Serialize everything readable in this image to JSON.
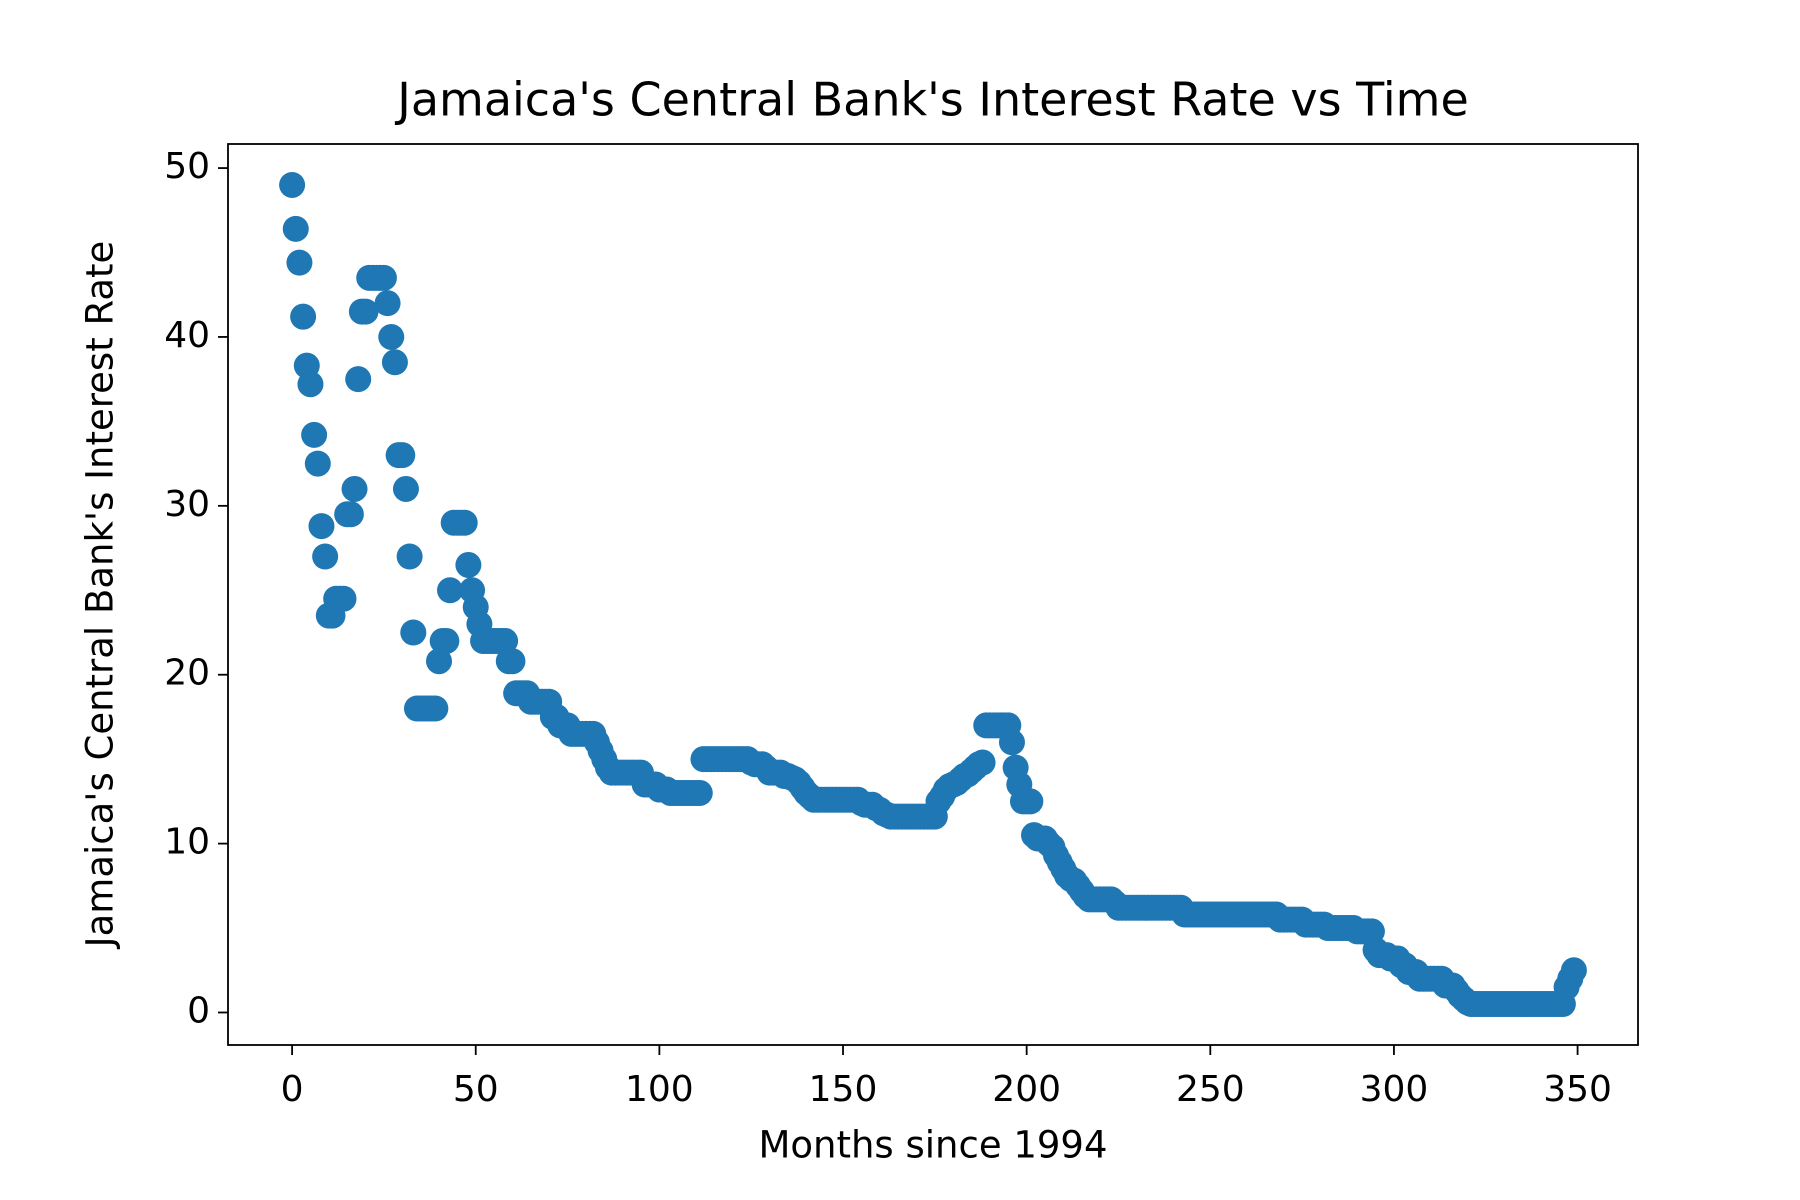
{
  "chart_data": {
    "type": "scatter",
    "title": "Jamaica's Central Bank's Interest Rate vs Time",
    "x_label": "Months since 1994",
    "y_label": "Jamaica's Central Bank's Interest Rate",
    "color": "#1f77b4",
    "xlim": [
      -17.45,
      366.45
    ],
    "ylim": [
      -1.925,
      51.425
    ],
    "xticks": [
      0,
      50,
      100,
      150,
      200,
      250,
      300,
      350
    ],
    "yticks": [
      0,
      10,
      20,
      30,
      40,
      50
    ],
    "x": [
      0,
      1,
      2,
      3,
      4,
      5,
      6,
      7,
      8,
      9,
      10,
      11,
      12,
      13,
      14,
      15,
      16,
      17,
      18,
      19,
      20,
      21,
      22,
      23,
      24,
      25,
      26,
      27,
      28,
      29,
      30,
      31,
      32,
      33,
      34,
      35,
      36,
      37,
      38,
      39,
      40,
      41,
      42,
      43,
      44,
      45,
      46,
      47,
      48,
      49,
      50,
      51,
      52,
      53,
      54,
      55,
      56,
      57,
      58,
      59,
      60,
      61,
      62,
      63,
      64,
      65,
      66,
      67,
      68,
      69,
      70,
      71,
      72,
      73,
      74,
      75,
      76,
      77,
      78,
      79,
      80,
      81,
      82,
      83,
      84,
      85,
      86,
      87,
      88,
      89,
      90,
      91,
      92,
      93,
      94,
      95,
      96,
      97,
      98,
      99,
      100,
      101,
      102,
      103,
      104,
      105,
      106,
      107,
      108,
      109,
      110,
      111,
      112,
      113,
      114,
      115,
      116,
      117,
      118,
      119,
      120,
      121,
      122,
      123,
      124,
      125,
      126,
      127,
      128,
      129,
      130,
      131,
      132,
      133,
      134,
      135,
      136,
      137,
      138,
      139,
      140,
      141,
      142,
      143,
      144,
      145,
      146,
      147,
      148,
      149,
      150,
      151,
      152,
      153,
      154,
      155,
      156,
      157,
      158,
      159,
      160,
      161,
      162,
      163,
      164,
      165,
      166,
      167,
      168,
      169,
      170,
      171,
      172,
      173,
      174,
      175,
      176,
      177,
      178,
      179,
      180,
      181,
      182,
      183,
      184,
      185,
      186,
      187,
      188,
      189,
      190,
      191,
      192,
      193,
      194,
      195,
      196,
      197,
      198,
      199,
      200,
      201,
      202,
      203,
      204,
      205,
      206,
      207,
      208,
      209,
      210,
      211,
      212,
      213,
      214,
      215,
      216,
      217,
      218,
      219,
      220,
      221,
      222,
      223,
      224,
      225,
      226,
      227,
      228,
      229,
      230,
      231,
      232,
      233,
      234,
      235,
      236,
      237,
      238,
      239,
      240,
      241,
      242,
      243,
      244,
      245,
      246,
      247,
      248,
      249,
      250,
      251,
      252,
      253,
      254,
      255,
      256,
      257,
      258,
      259,
      260,
      261,
      262,
      263,
      264,
      265,
      266,
      267,
      268,
      269,
      270,
      271,
      272,
      273,
      274,
      275,
      276,
      277,
      278,
      279,
      280,
      281,
      282,
      283,
      284,
      285,
      286,
      287,
      288,
      289,
      290,
      291,
      292,
      293,
      294,
      295,
      296,
      297,
      298,
      299,
      300,
      301,
      302,
      303,
      304,
      305,
      306,
      307,
      308,
      309,
      310,
      311,
      312,
      313,
      314,
      315,
      316,
      317,
      318,
      319,
      320,
      321,
      322,
      323,
      324,
      325,
      326,
      327,
      328,
      329,
      330,
      331,
      332,
      333,
      334,
      335,
      336,
      337,
      338,
      339,
      340,
      341,
      342,
      343,
      344,
      345,
      346,
      347,
      348,
      349
    ],
    "values": [
      49,
      46.4,
      44.4,
      41.2,
      38.3,
      37.2,
      34.2,
      32.5,
      28.8,
      27,
      23.5,
      23.5,
      24.5,
      24.5,
      24.5,
      29.5,
      29.5,
      31,
      37.5,
      41.5,
      41.5,
      43.5,
      43.5,
      43.5,
      43.5,
      43.5,
      42,
      40,
      38.5,
      33,
      33,
      31,
      27,
      22.5,
      18,
      18,
      18,
      18,
      18,
      18,
      20.8,
      22,
      22,
      25,
      29,
      29,
      29,
      29,
      26.5,
      25,
      24,
      23,
      22,
      22,
      22,
      22,
      22,
      22,
      22,
      20.8,
      20.8,
      18.9,
      18.9,
      18.9,
      18.9,
      18.4,
      18.4,
      18.4,
      18.4,
      18.4,
      18.4,
      17.5,
      17.5,
      17,
      17,
      17,
      16.5,
      16.5,
      16.5,
      16.5,
      16.5,
      16.5,
      16.5,
      16,
      15.5,
      15,
      14.5,
      14.2,
      14.2,
      14.2,
      14.2,
      14.2,
      14.2,
      14.2,
      14.2,
      14.2,
      13.5,
      13.5,
      13.5,
      13.5,
      13.2,
      13.2,
      13.2,
      13,
      13,
      13,
      13,
      13,
      13,
      13,
      13,
      13,
      15,
      15,
      15,
      15,
      15,
      15,
      15,
      15,
      15,
      15,
      15,
      15,
      15,
      14.8,
      14.7,
      14.7,
      14.7,
      14.5,
      14.2,
      14.2,
      14.2,
      14.2,
      14,
      14,
      13.9,
      13.8,
      13.6,
      13.3,
      13,
      12.8,
      12.6,
      12.6,
      12.6,
      12.6,
      12.6,
      12.6,
      12.6,
      12.6,
      12.6,
      12.6,
      12.6,
      12.6,
      12.6,
      12.4,
      12.3,
      12.3,
      12.3,
      12.1,
      12,
      11.8,
      11.7,
      11.6,
      11.6,
      11.6,
      11.6,
      11.6,
      11.6,
      11.6,
      11.6,
      11.6,
      11.6,
      11.6,
      11.6,
      11.6,
      12.5,
      12.8,
      13.2,
      13.4,
      13.5,
      13.6,
      13.8,
      14,
      14.1,
      14.3,
      14.5,
      14.7,
      14.8,
      17,
      17,
      17,
      17,
      17,
      17,
      17,
      16,
      14.5,
      13.5,
      12.5,
      12.5,
      12.5,
      10.5,
      10.3,
      10.3,
      10.3,
      10,
      9.8,
      9.3,
      8.9,
      8.5,
      8.1,
      7.9,
      7.8,
      7.5,
      7.2,
      6.9,
      6.7,
      6.7,
      6.7,
      6.7,
      6.7,
      6.7,
      6.7,
      6.5,
      6.2,
      6.2,
      6.2,
      6.2,
      6.2,
      6.2,
      6.2,
      6.2,
      6.2,
      6.2,
      6.2,
      6.2,
      6.2,
      6.2,
      6.2,
      6.2,
      6.2,
      6.2,
      5.8,
      5.8,
      5.8,
      5.8,
      5.8,
      5.8,
      5.8,
      5.8,
      5.8,
      5.8,
      5.8,
      5.8,
      5.8,
      5.8,
      5.8,
      5.8,
      5.8,
      5.8,
      5.8,
      5.8,
      5.8,
      5.8,
      5.8,
      5.8,
      5.8,
      5.8,
      5.5,
      5.5,
      5.5,
      5.5,
      5.5,
      5.5,
      5.5,
      5.2,
      5.2,
      5.2,
      5.2,
      5.2,
      5.2,
      5,
      5,
      5,
      5,
      5,
      5,
      5,
      5,
      4.8,
      4.8,
      4.8,
      4.8,
      4.8,
      3.7,
      3.4,
      3.4,
      3.4,
      3.2,
      3.2,
      3.2,
      2.8,
      2.8,
      2.4,
      2.4,
      2.4,
      2,
      2,
      2,
      2,
      2,
      2,
      2,
      1.6,
      1.6,
      1.6,
      1.3,
      1,
      0.8,
      0.6,
      0.5,
      0.5,
      0.5,
      0.5,
      0.5,
      0.5,
      0.5,
      0.5,
      0.5,
      0.5,
      0.5,
      0.5,
      0.5,
      0.5,
      0.5,
      0.5,
      0.5,
      0.5,
      0.5,
      0.5,
      0.5,
      0.5,
      0.5,
      0.5,
      0.5,
      0.5,
      1.5,
      2,
      2.5
    ]
  }
}
